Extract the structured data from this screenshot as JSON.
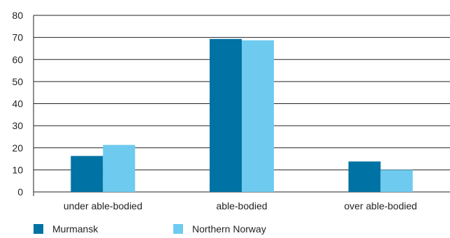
{
  "chart_data": {
    "type": "bar",
    "categories": [
      "under able-bodied",
      "able-bodied",
      "over able-bodied"
    ],
    "series": [
      {
        "name": "Murmansk",
        "values": [
          16.3,
          69.3,
          13.8
        ],
        "color": "#0072a3"
      },
      {
        "name": "Northern Norway",
        "values": [
          21.3,
          68.7,
          10.0
        ],
        "color": "#6ecbef"
      }
    ],
    "ylim": [
      0,
      80
    ],
    "yticks": [
      0,
      10,
      20,
      30,
      40,
      50,
      60,
      70,
      80
    ],
    "grid": true,
    "legend_position": "bottom-left",
    "title": "",
    "xlabel": "",
    "ylabel": ""
  }
}
